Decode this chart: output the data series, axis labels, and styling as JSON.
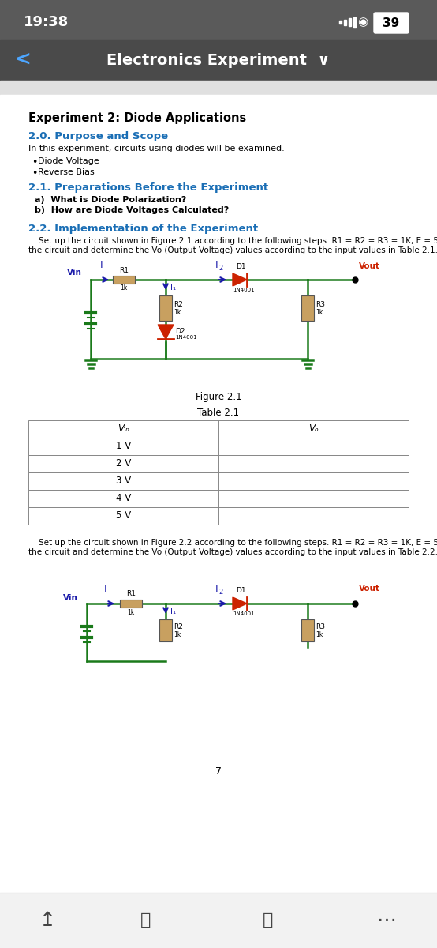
{
  "status_bar_bg": "#5a5a5a",
  "status_bar_text": "19:38",
  "status_bar_right": "39",
  "nav_bar_bg": "#4a4a4a",
  "nav_bar_title": "Electronics Experiment",
  "page_bg": "#f0f0f0",
  "content_bg": "#ffffff",
  "heading1_color": "#000000",
  "heading2_color": "#1a6eb5",
  "body_color": "#000000",
  "red_color": "#cc0000",
  "circuit_green": "#1a7a1a",
  "circuit_blue": "#1a1aaa",
  "circuit_red": "#cc2200",
  "circuit_brown": "#8B4513",
  "bottom_bar_bg": "#f5f5f5",
  "bottom_bar_icon_color": "#555555",
  "page_number": "7"
}
